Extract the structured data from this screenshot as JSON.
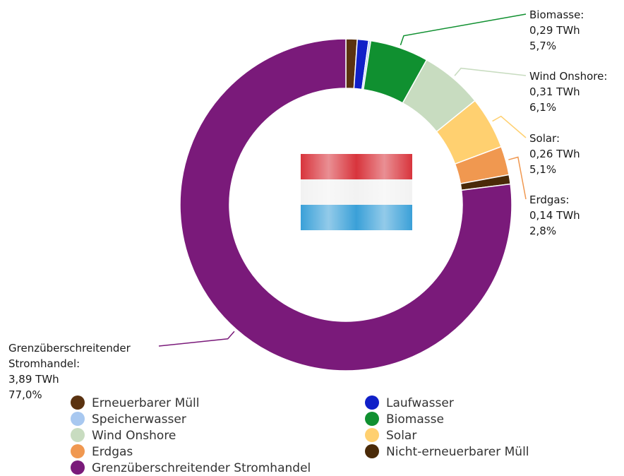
{
  "chart_data": {
    "type": "donut",
    "categories": [
      "Erneuerbarer Müll",
      "Laufwasser",
      "Speicherwasser",
      "Biomasse",
      "Wind Onshore",
      "Solar",
      "Erdgas",
      "Nicht-erneuerbarer Müll",
      "Grenzüberschreitender Stromhandel"
    ],
    "values": [
      1.1,
      1.1,
      0.2,
      5.7,
      6.1,
      5.1,
      2.8,
      0.9,
      77.0
    ],
    "value_labels": [
      null,
      null,
      null,
      "5,7%",
      "6,1%",
      "5,1%",
      "2,8%",
      null,
      "77,0%"
    ],
    "energy": [
      null,
      null,
      null,
      0.29,
      0.31,
      0.26,
      0.14,
      null,
      3.89
    ],
    "energy_labels": [
      null,
      null,
      null,
      "0,29 TWh",
      "0,31 TWh",
      "0,26 TWh",
      "0,14 TWh",
      null,
      "3,89 TWh"
    ],
    "callout_names": [
      null,
      null,
      null,
      "Biomasse:",
      "Wind Onshore:",
      "Solar:",
      "Erdgas:",
      null,
      "Grenzüberschreitender Stromhandel:"
    ],
    "colors": [
      "#5a3210",
      "#1020c8",
      "#a8c8f0",
      "#109030",
      "#c8dcc0",
      "#ffd070",
      "#f09850",
      "#4a2a08",
      "#7a1a7a"
    ],
    "legend": "bottom"
  }
}
